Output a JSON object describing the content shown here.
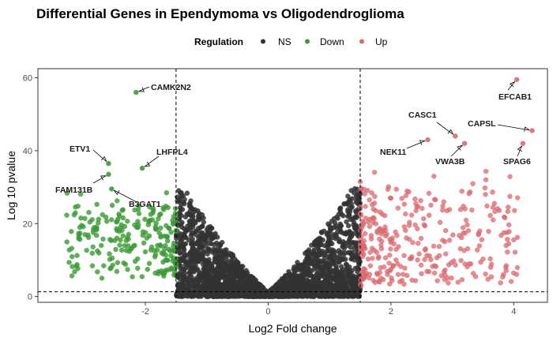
{
  "chart_data": {
    "type": "scatter",
    "title": "Differential Genes in Ependymoma vs Oligodendroglioma",
    "xlabel": "Log2 Fold change",
    "ylabel": "Log 10 pvalue",
    "xlim": [
      -3.75,
      4.55
    ],
    "ylim": [
      -1.6,
      62.5
    ],
    "x_ticks": [
      -2,
      0,
      2,
      4
    ],
    "y_ticks": [
      0,
      20,
      40,
      60
    ],
    "grid": false,
    "legend": {
      "title": "Regulation",
      "position": "top",
      "entries": [
        {
          "name": "NS",
          "color": "#333333"
        },
        {
          "name": "Down",
          "color": "#3a9a35"
        },
        {
          "name": "Up",
          "color": "#d9686f"
        }
      ]
    },
    "thresholds": {
      "x": [
        -1.5,
        1.5
      ],
      "y": 1.3
    },
    "series": [
      {
        "name": "NS",
        "color": "#333333",
        "description": "dense V-shaped cloud of non-significant genes with |log2FC| < 1.5, pvalue rising with |fold change| up to about 30"
      },
      {
        "name": "Down",
        "color": "#3a9a35",
        "description": "downregulated genes with log2FC between -3.3 and -1.5, log10 pvalue between 5 and 30 plus labeled outliers"
      },
      {
        "name": "Up",
        "color": "#d9686f",
        "description": "upregulated genes with log2FC between 1.5 and 4.3, log10 pvalue between 3 and 40 plus labeled outliers"
      }
    ],
    "labeled_points": [
      {
        "label": "CAMK2N2",
        "x": -2.15,
        "y": 56.0,
        "group": "Down"
      },
      {
        "label": "ETV1",
        "x": -2.6,
        "y": 36.5,
        "group": "Down"
      },
      {
        "label": "LHFPL4",
        "x": -2.05,
        "y": 35.2,
        "group": "Down"
      },
      {
        "label": "FAM131B",
        "x": -2.6,
        "y": 33.5,
        "group": "Down"
      },
      {
        "label": "B3GAT1",
        "x": -2.55,
        "y": 29.5,
        "group": "Down"
      },
      {
        "label": "EFCAB1",
        "x": 4.05,
        "y": 59.5,
        "group": "Up"
      },
      {
        "label": "CAPSL",
        "x": 4.3,
        "y": 45.5,
        "group": "Up"
      },
      {
        "label": "CASC1",
        "x": 3.05,
        "y": 44.0,
        "group": "Up"
      },
      {
        "label": "SPAG6",
        "x": 4.15,
        "y": 42.0,
        "group": "Up"
      },
      {
        "label": "VWA3B",
        "x": 3.2,
        "y": 42.0,
        "group": "Up"
      },
      {
        "label": "NEK11",
        "x": 2.6,
        "y": 43.0,
        "group": "Up"
      }
    ]
  }
}
